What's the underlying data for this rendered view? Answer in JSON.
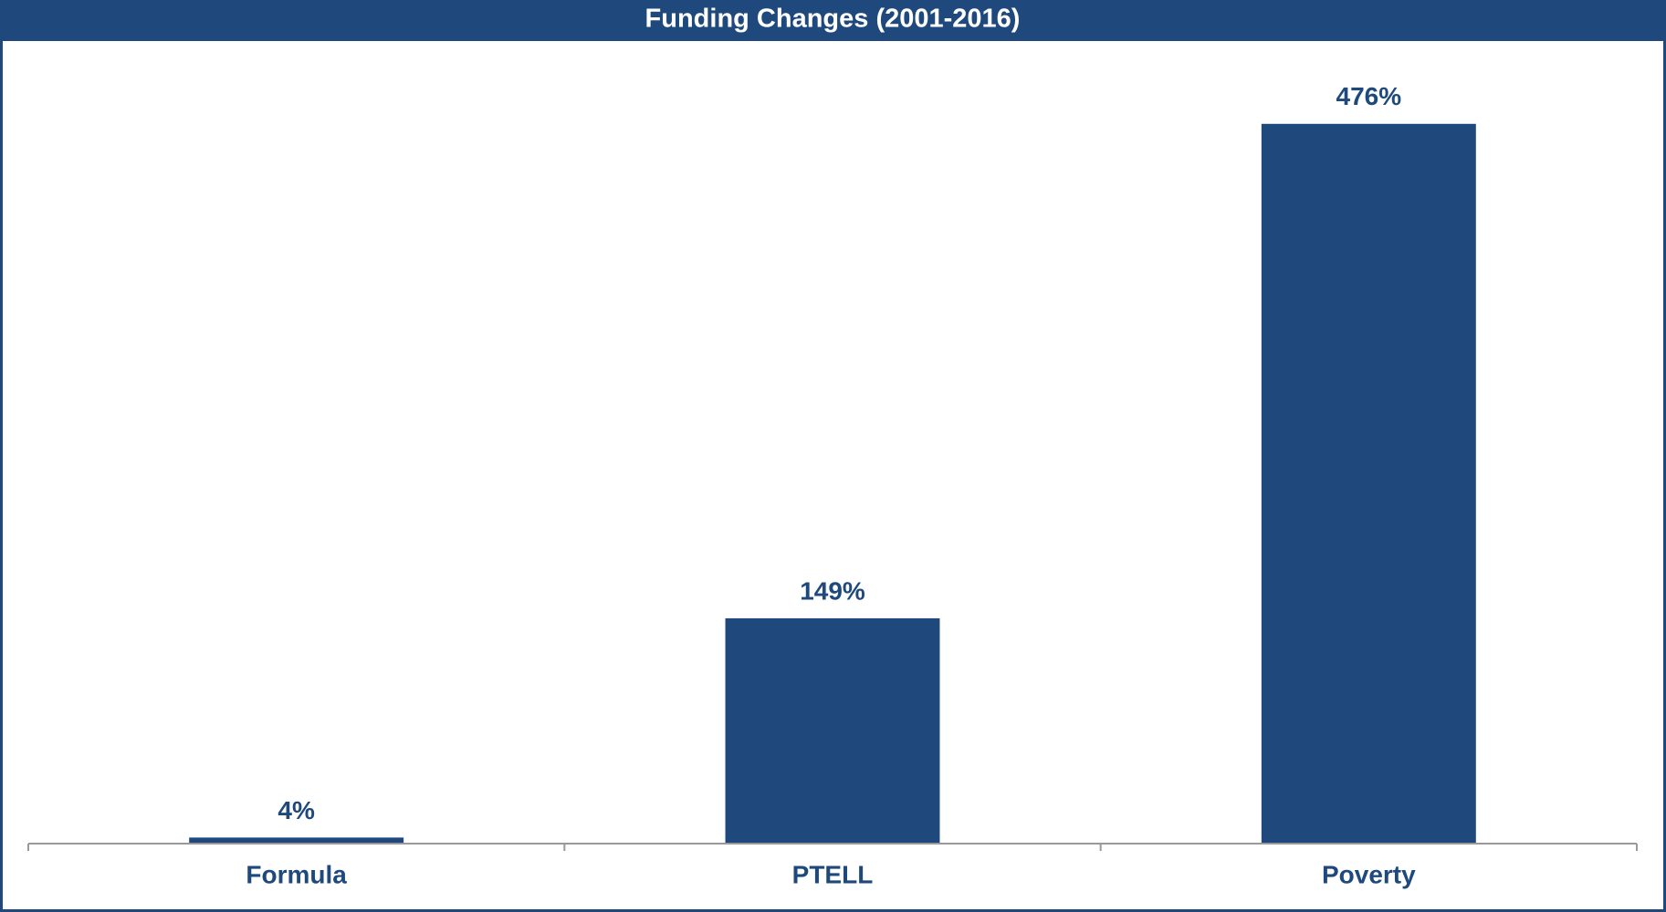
{
  "chart_data": {
    "type": "bar",
    "title": "Funding Changes (2001-2016)",
    "categories": [
      "Formula",
      "PTELL",
      "Poverty"
    ],
    "values": [
      4,
      149,
      476
    ],
    "value_labels": [
      "4%",
      "149%",
      "476%"
    ],
    "color": "#1f497d",
    "ylim": [
      0,
      500
    ]
  }
}
